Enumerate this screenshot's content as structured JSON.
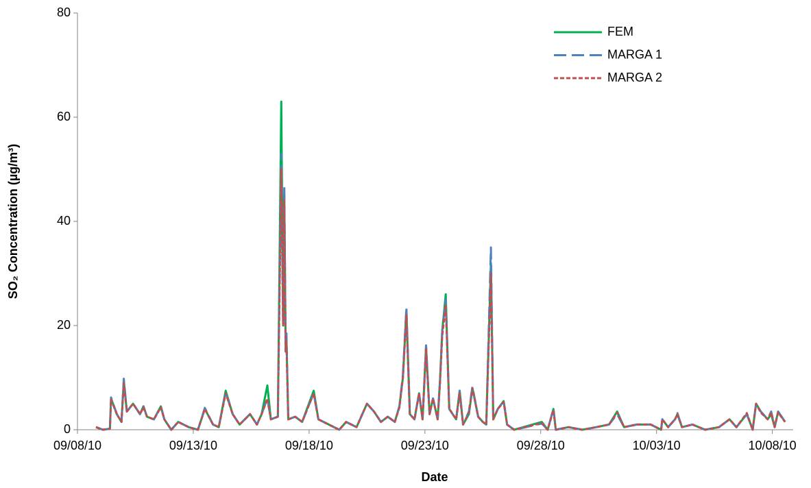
{
  "chart_data": {
    "type": "line",
    "xlabel": "Date",
    "ylabel": "SO₂ Concentration (µg/m³)",
    "xlim": [
      0,
      30.9
    ],
    "ylim": [
      0,
      80
    ],
    "xticks": [
      {
        "value": 0,
        "label": "09/08/10"
      },
      {
        "value": 5,
        "label": "09/13/10"
      },
      {
        "value": 10,
        "label": "09/18/10"
      },
      {
        "value": 15,
        "label": "09/23/10"
      },
      {
        "value": 20,
        "label": "09/28/10"
      },
      {
        "value": 25,
        "label": "10/03/10"
      },
      {
        "value": 30,
        "label": "10/08/10"
      }
    ],
    "yticks": [
      0,
      20,
      40,
      60,
      80
    ],
    "legend": "upper right",
    "x": [
      0.8,
      1.1,
      1.4,
      1.45,
      1.7,
      1.9,
      2.0,
      2.13,
      2.4,
      2.7,
      2.85,
      3.0,
      3.3,
      3.6,
      3.75,
      4.05,
      4.35,
      4.8,
      5.2,
      5.5,
      5.85,
      6.1,
      6.4,
      6.7,
      7.0,
      7.45,
      7.75,
      7.95,
      8.2,
      8.35,
      8.65,
      8.8,
      8.88,
      8.93,
      8.99,
      9.02,
      9.1,
      9.4,
      9.7,
      10.2,
      10.4,
      10.85,
      11.3,
      11.6,
      12.05,
      12.5,
      12.8,
      13.1,
      13.4,
      13.7,
      13.9,
      14.05,
      14.2,
      14.35,
      14.55,
      14.75,
      14.9,
      15.05,
      15.2,
      15.35,
      15.55,
      15.65,
      15.75,
      15.9,
      16.05,
      16.2,
      16.35,
      16.5,
      16.65,
      16.9,
      17.05,
      17.3,
      17.5,
      17.65,
      17.85,
      17.95,
      18.15,
      18.4,
      18.55,
      18.85,
      20.05,
      20.3,
      20.55,
      20.65,
      21.2,
      21.8,
      22.4,
      22.95,
      23.3,
      23.6,
      24.15,
      24.75,
      25.2,
      25.25,
      25.5,
      25.8,
      25.9,
      26.1,
      26.55,
      27.1,
      27.7,
      28.15,
      28.45,
      28.9,
      29.15,
      29.3,
      29.5,
      29.8,
      29.95,
      30.1,
      30.25,
      30.55
    ],
    "series": [
      {
        "name": "FEM",
        "color": "#00b050",
        "values": [
          0.5,
          0,
          0.2,
          6,
          3,
          1.5,
          9.5,
          3.5,
          5,
          3,
          4.5,
          2.5,
          2,
          4.5,
          2,
          0,
          1.5,
          0.5,
          0,
          4,
          1,
          0.5,
          7.5,
          3,
          1,
          3,
          1,
          3,
          8.5,
          2,
          2.5,
          63,
          20,
          45,
          15,
          18,
          2,
          2.5,
          1.5,
          7.5,
          2,
          1,
          0,
          1.5,
          0.5,
          5,
          3.5,
          1.5,
          2.5,
          1.5,
          4.5,
          10,
          23,
          3,
          2,
          7,
          2,
          16,
          3,
          6,
          2,
          9.5,
          19,
          26,
          4,
          3,
          2,
          7.5,
          1,
          3,
          8,
          2.5,
          1.5,
          1,
          32,
          2,
          4,
          5.5,
          1,
          0,
          1.5,
          0,
          4,
          0,
          0.5,
          0,
          0.5,
          1,
          3.5,
          0.5,
          1,
          1,
          0,
          2,
          0.5,
          2,
          3,
          0.5,
          1,
          0,
          0.5,
          2,
          0.5,
          3,
          0,
          5,
          3.5,
          2,
          3,
          0.5,
          3.5,
          1.5
        ]
      },
      {
        "name": "MARGA 1",
        "color": "#4f81bd",
        "values": [
          0.5,
          0,
          0.2,
          6.2,
          3,
          1.5,
          9.8,
          3.5,
          5,
          3,
          4.5,
          2.5,
          2,
          4.5,
          2,
          0,
          1.5,
          0.5,
          0,
          4.2,
          1,
          0.5,
          7.2,
          3,
          1,
          3,
          1,
          3,
          6,
          2,
          2.5,
          53,
          20,
          47,
          15,
          18.5,
          2,
          2.5,
          1.5,
          7,
          2,
          1,
          0,
          1.5,
          0.5,
          5,
          3.5,
          1.5,
          2.5,
          1.5,
          4.5,
          10.5,
          23.5,
          3,
          2,
          7,
          2,
          16.2,
          3,
          6,
          2,
          9,
          19,
          25,
          4,
          3,
          2,
          7.5,
          1,
          3.5,
          8.3,
          2.5,
          1.5,
          1,
          35,
          2,
          4,
          5.5,
          1,
          0,
          1.2,
          0,
          4,
          0,
          0.5,
          0,
          0.5,
          1,
          3,
          0.5,
          1,
          1,
          0,
          2,
          0.5,
          2,
          3.2,
          0.5,
          1,
          0,
          0.5,
          2,
          0.5,
          3,
          0,
          5,
          3.5,
          2,
          3.5,
          0.5,
          3.5,
          1.5
        ]
      },
      {
        "name": "MARGA 2",
        "color": "#c0504d",
        "values": [
          0.5,
          0,
          0.2,
          5.8,
          3,
          1.5,
          9,
          3.5,
          5,
          3,
          4.3,
          2.5,
          2,
          4.3,
          2,
          0,
          1.5,
          0.5,
          0,
          4,
          1,
          0.5,
          7,
          3,
          1,
          3,
          1,
          3,
          6,
          2,
          2.5,
          50,
          20,
          44,
          15,
          17,
          2,
          2.5,
          1.5,
          7,
          2,
          1,
          0,
          1.5,
          0.5,
          5,
          3.5,
          1.5,
          2.5,
          1.5,
          4.3,
          10,
          22,
          3,
          2,
          7,
          2,
          15.5,
          3,
          6,
          2,
          9,
          18,
          24,
          4,
          3,
          2,
          7,
          1,
          3.3,
          8,
          2.5,
          1.5,
          1,
          30,
          2,
          4,
          5.3,
          1,
          0,
          1.3,
          0,
          3.8,
          0,
          0.5,
          0,
          0.5,
          1,
          3.3,
          0.5,
          1,
          1,
          0,
          2,
          0.5,
          2,
          3,
          0.5,
          1,
          0,
          0.5,
          2,
          0.5,
          3.2,
          0,
          5,
          3.3,
          2,
          3.3,
          0.5,
          3.3,
          1.5
        ]
      }
    ]
  }
}
